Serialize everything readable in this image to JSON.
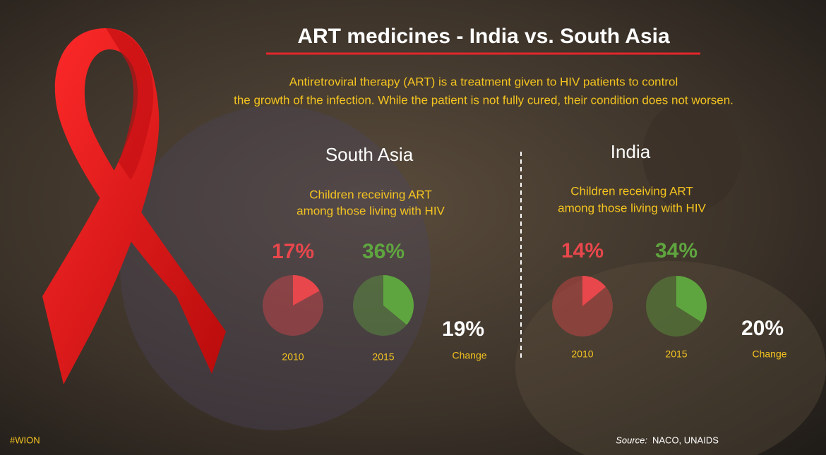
{
  "title": "ART medicines - India vs. South Asia",
  "subtitle": [
    "Antiretroviral therapy (ART) is a treatment given to HIV patients to control",
    "the growth of the infection. While the patient is not fully cured, their condition does not worsen."
  ],
  "tag": "#WION",
  "source_label": "Source:",
  "source": "NACO, UNAIDS",
  "chart_data": [
    {
      "type": "pie",
      "title": "South Asia",
      "subtitle": [
        "Children receiving ART",
        "among those living with HIV"
      ],
      "categories": [
        "2010",
        "2015"
      ],
      "values": [
        17,
        36
      ],
      "value_labels": [
        "17%",
        "36%"
      ],
      "colors": [
        "#e8474c",
        "#5fa53f"
      ],
      "change": "19%",
      "change_text": "Change"
    },
    {
      "type": "pie",
      "title": "India",
      "subtitle": [
        "Children receiving ART",
        "among those living with HIV"
      ],
      "categories": [
        "2010",
        "2015"
      ],
      "values": [
        14,
        34
      ],
      "value_labels": [
        "14%",
        "34%"
      ],
      "colors": [
        "#e8474c",
        "#5fa53f"
      ],
      "change": "20%",
      "change_text": "Change"
    }
  ]
}
